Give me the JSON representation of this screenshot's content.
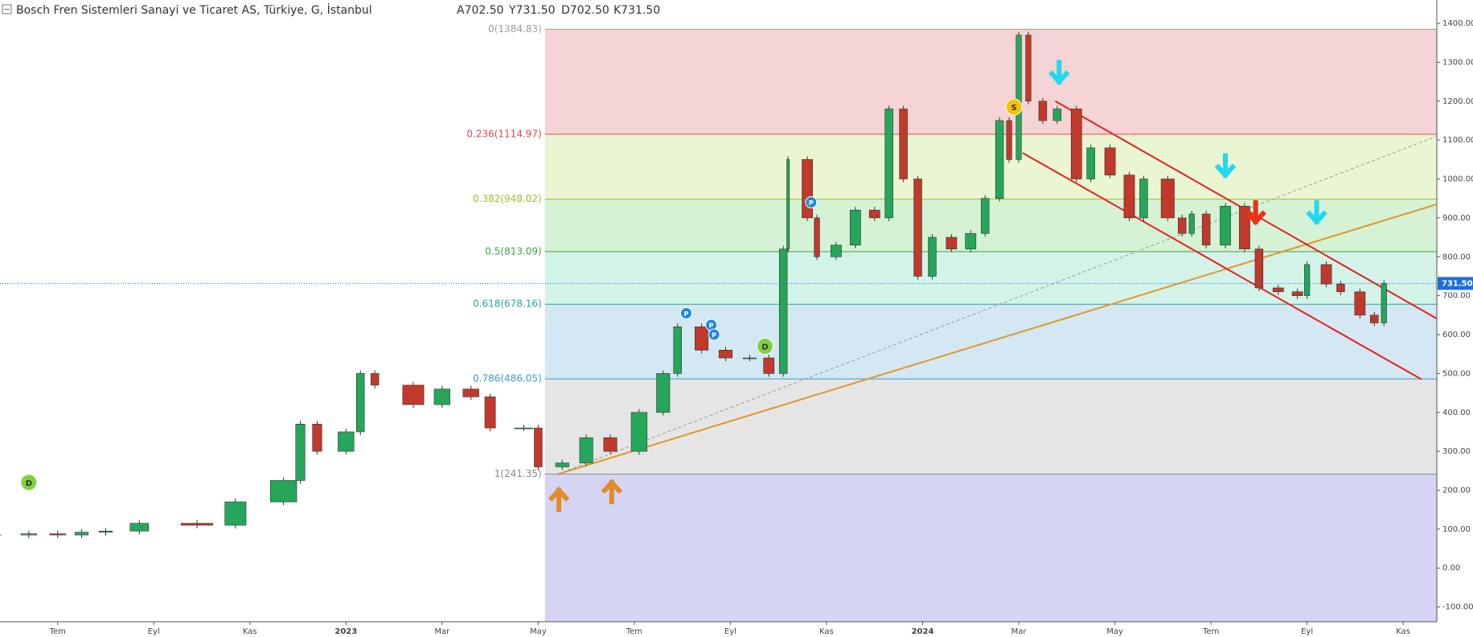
{
  "chart_data": {
    "type": "candlestick",
    "title": "Bosch Fren Sistemleri Sanayi ve Ticaret AS, Türkiye, G, İstanbul",
    "ohlc_texts": [
      "A702.50",
      "Y731.50",
      "D702.50",
      "K731.50"
    ],
    "xlim": [
      -1.2,
      28.7
    ],
    "ylim": [
      -138,
      1460
    ],
    "xticks": [
      {
        "value": 0,
        "label": "Tem"
      },
      {
        "value": 2,
        "label": "Eyl"
      },
      {
        "value": 4,
        "label": "Kas"
      },
      {
        "value": 6,
        "label": "2023"
      },
      {
        "value": 8,
        "label": "Mar"
      },
      {
        "value": 10,
        "label": "May"
      },
      {
        "value": 12,
        "label": "Tem"
      },
      {
        "value": 14,
        "label": "Eyl"
      },
      {
        "value": 16,
        "label": "Kas"
      },
      {
        "value": 18,
        "label": "2024"
      },
      {
        "value": 20,
        "label": "Mar"
      },
      {
        "value": 22,
        "label": "May"
      },
      {
        "value": 24,
        "label": "Tem"
      },
      {
        "value": 26,
        "label": "Eyl"
      },
      {
        "value": 28,
        "label": "Kas"
      }
    ],
    "yticks": [
      {
        "value": 1400,
        "label": "1400.00"
      },
      {
        "value": 1300,
        "label": "1300.00"
      },
      {
        "value": 1200,
        "label": "1200.00"
      },
      {
        "value": 1100,
        "label": "1100.00"
      },
      {
        "value": 1000,
        "label": "1000.00"
      },
      {
        "value": 900,
        "label": "900.00"
      },
      {
        "value": 800,
        "label": "800.00"
      },
      {
        "value": 700,
        "label": "700.00"
      },
      {
        "value": 600,
        "label": "600.00"
      },
      {
        "value": 500,
        "label": "500.00"
      },
      {
        "value": 400,
        "label": "400.00"
      },
      {
        "value": 300,
        "label": "300.00"
      },
      {
        "value": 200,
        "label": "200.00"
      },
      {
        "value": 100,
        "label": "100.00"
      },
      {
        "value": 0,
        "label": "0.00"
      },
      {
        "value": -100,
        "label": "-100.00"
      }
    ],
    "up_color": "#26a65b",
    "down_color": "#c0392b",
    "x": [
      -1.2,
      -0.6,
      0,
      0.5,
      1,
      1.7,
      2.9,
      3.7,
      4.7,
      5.05,
      5.4,
      6.0,
      6.3,
      6.6,
      7.4,
      8.0,
      8.6,
      9.0,
      9.7,
      10.0,
      10.5,
      11.0,
      11.5,
      12.1,
      12.6,
      12.9,
      13.4,
      13.9,
      14.4,
      14.8,
      15.1,
      15.2,
      15.6,
      15.8,
      16.2,
      16.6,
      17.0,
      17.3,
      17.6,
      17.9,
      18.2,
      18.6,
      19.0,
      19.3,
      19.6,
      19.8,
      20.0,
      20.2,
      20.5,
      20.8,
      21.2,
      21.5,
      21.9,
      22.3,
      22.6,
      23.1,
      23.4,
      23.6,
      23.9,
      24.3,
      24.7,
      25.0,
      25.4,
      25.8,
      26.0,
      26.4,
      26.7,
      27.1,
      27.4,
      27.6
    ],
    "values": [
      85,
      88,
      85,
      92,
      95,
      115,
      110,
      170,
      225,
      370,
      300,
      350,
      500,
      470,
      420,
      460,
      440,
      360,
      360,
      260,
      270,
      335,
      300,
      400,
      500,
      620,
      560,
      540,
      540,
      500,
      820,
      1050,
      900,
      800,
      830,
      920,
      900,
      1180,
      1000,
      750,
      850,
      820,
      860,
      950,
      1150,
      1050,
      1370,
      1200,
      1150,
      1180,
      1000,
      1080,
      1010,
      900,
      1000,
      900,
      860,
      910,
      830,
      930,
      820,
      720,
      710,
      700,
      780,
      730,
      710,
      650,
      630,
      731.5
    ],
    "fib_x_start": 10.14,
    "fib_levels": [
      {
        "label": "0(1384.83)",
        "value": 1384.83,
        "color": "#9e9e9e",
        "fill": "#f4d4d4"
      },
      {
        "label": "0.236(1114.97)",
        "value": 1114.97,
        "color": "#e04848",
        "fill": "#eaf5d2"
      },
      {
        "label": "0.382(948.02)",
        "value": 948.02,
        "color": "#9cbf2c",
        "fill": "#d5f2d5"
      },
      {
        "label": "0.5(813.09)",
        "value": 813.09,
        "color": "#43a047",
        "fill": "#d3f3e9"
      },
      {
        "label": "0.618(678.16)",
        "value": 678.16,
        "color": "#26a69a",
        "fill": "#d3e8f3"
      },
      {
        "label": "0.786(486.05)",
        "value": 486.05,
        "color": "#3a9bd0",
        "fill": "#e5e5e5"
      },
      {
        "label": "1(241.35)",
        "value": 241.35,
        "color": "#888888",
        "fill": "#d5d5f3"
      }
    ],
    "trend_lines": [
      {
        "color": "#e0982a",
        "x": [
          10.4,
          28.7
        ],
        "y": [
          241,
          935
        ]
      },
      {
        "color": "#999999",
        "dashed": true,
        "x": [
          10.4,
          28.7
        ],
        "y": [
          241,
          1110
        ]
      },
      {
        "color": "#e82020",
        "x": [
          20.76,
          28.7
        ],
        "y": [
          1200,
          641
        ]
      },
      {
        "color": "#e82020",
        "x": [
          20.08,
          28.38
        ],
        "y": [
          1067,
          485
        ]
      }
    ],
    "arrows": [
      {
        "dir": "up",
        "color": "#e08a2a",
        "x": 10.43,
        "y": 200
      },
      {
        "dir": "up",
        "color": "#e08a2a",
        "x": 11.53,
        "y": 220
      },
      {
        "dir": "down",
        "color": "#22d8f0",
        "x": 20.84,
        "y": 1250
      },
      {
        "dir": "down",
        "color": "#22d8f0",
        "x": 24.3,
        "y": 1010
      },
      {
        "dir": "down",
        "color": "#e8331a",
        "x": 24.93,
        "y": 890
      },
      {
        "dir": "down",
        "color": "#22d8f0",
        "x": 26.2,
        "y": 890
      }
    ],
    "badges": [
      {
        "text": "D",
        "color": "#7ed040",
        "x": -0.6,
        "y": 220
      },
      {
        "text": "S",
        "color": "#f5c20a",
        "x": 19.9,
        "y": 1185
      },
      {
        "text": "P",
        "color": "#1e88e5",
        "x": 15.68,
        "y": 940
      },
      {
        "text": "P",
        "color": "#1e88e5",
        "x": 13.08,
        "y": 655
      },
      {
        "text": "P",
        "color": "#1e88e5",
        "x": 13.6,
        "y": 625
      },
      {
        "text": "P",
        "color": "#1e88e5",
        "x": 13.66,
        "y": 600
      },
      {
        "text": "D",
        "color": "#7ed040",
        "x": 14.72,
        "y": 570
      }
    ],
    "last_price": {
      "value": 731.5,
      "label": "731.50",
      "color": "#1e6fd9"
    }
  }
}
